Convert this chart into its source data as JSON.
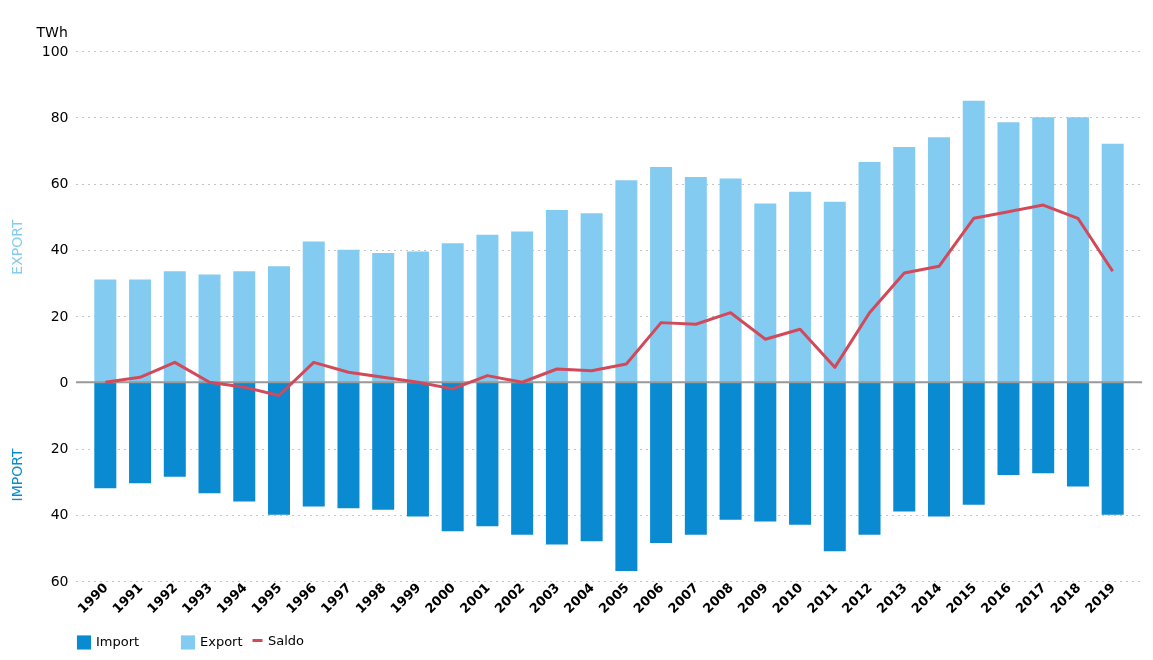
{
  "chart_data": {
    "type": "bar",
    "ylabel": "TWh",
    "stacked": true,
    "categories": [
      "1990",
      "1991",
      "1992",
      "1993",
      "1994",
      "1995",
      "1996",
      "1997",
      "1998",
      "1999",
      "2000",
      "2001",
      "2002",
      "2003",
      "2004",
      "2005",
      "2006",
      "2007",
      "2008",
      "2009",
      "2010",
      "2011",
      "2012",
      "2013",
      "2014",
      "2015",
      "2016",
      "2017",
      "2018",
      "2019"
    ],
    "series": [
      {
        "name": "Import",
        "color": "#0a8ad0",
        "values": [
          -32,
          -30.5,
          -28.5,
          -33.5,
          -36,
          -40,
          -37.5,
          -38,
          -38.5,
          -40.5,
          -45,
          -43.5,
          -46,
          -49,
          -48,
          -57,
          -48.5,
          -46,
          -41.5,
          -42,
          -43,
          -51,
          -46,
          -39,
          -40.5,
          -37,
          -28,
          -27.5,
          -31.5,
          -40
        ]
      },
      {
        "name": "Export",
        "color": "#84cbf2",
        "values": [
          31,
          31,
          33.5,
          32.5,
          33.5,
          35,
          42.5,
          40,
          39,
          39.5,
          42,
          44.5,
          45.5,
          52,
          51,
          61,
          65,
          62,
          61.5,
          54,
          57.5,
          54.5,
          66.5,
          71,
          74,
          85,
          78.5,
          80,
          80,
          72
        ]
      },
      {
        "name": "Saldo",
        "type": "line",
        "color": "#d2495a",
        "values": [
          0,
          1.5,
          6,
          0,
          -1.5,
          -4,
          6,
          3,
          1.5,
          0,
          -2,
          2,
          0,
          4,
          3.5,
          5.5,
          18,
          17.5,
          21,
          13,
          16,
          4.5,
          21,
          33,
          35,
          49.5,
          51.5,
          53.5,
          49.5,
          33.5
        ]
      }
    ],
    "ylim": [
      -60,
      100
    ],
    "yticks": [
      {
        "value": -60,
        "label": "60"
      },
      {
        "value": -40,
        "label": "40"
      },
      {
        "value": -20,
        "label": "20"
      },
      0,
      20,
      40,
      60,
      80,
      100
    ],
    "ref_lines": [
      {
        "axis": "y",
        "value": 0,
        "color": "#999999"
      }
    ],
    "annotations": [
      "EXPORT",
      "IMPORT"
    ],
    "grid": "y",
    "legend": "bottom left",
    "marker": "none",
    "line_style": "solid"
  }
}
